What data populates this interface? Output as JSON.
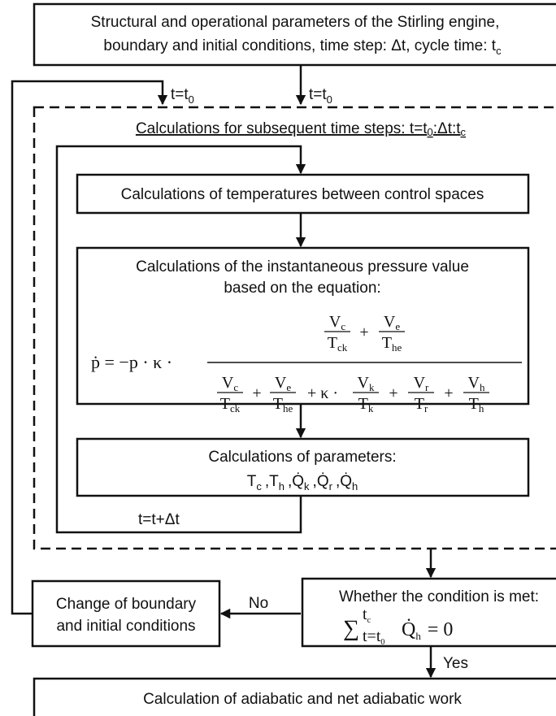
{
  "top_box": {
    "line1": "Structural and operational parameters of the Stirling engine,",
    "line2": "boundary and initial conditions, time step: Δt, cycle time: t",
    "line2_sub": "c"
  },
  "start_labels": [
    {
      "text": "t=t",
      "sub": "0"
    },
    {
      "text": "t=t",
      "sub": "0"
    }
  ],
  "loop_box": {
    "title": "Calculations for subsequent time steps: t=t",
    "title_sub1": "0",
    "title_mid": ":Δt:t",
    "title_sub2": "c"
  },
  "temperature_box": {
    "text": "Calculations of temperatures between control spaces"
  },
  "pressure_box": {
    "line1": "Calculations of the instantaneous pressure value",
    "line2": "based on the equation:",
    "formula": {
      "lead": "ṗ = −p · κ ·",
      "numerator": [
        {
          "n": "V",
          "ns": "c",
          "d": "T",
          "ds": "ck"
        },
        "+",
        {
          "n": "V",
          "ns": "e",
          "d": "T",
          "ds": "he"
        }
      ],
      "denominator": [
        {
          "n": "V",
          "ns": "c",
          "d": "T",
          "ds": "ck"
        },
        "+",
        {
          "n": "V",
          "ns": "e",
          "d": "T",
          "ds": "he"
        },
        "+ κ ·",
        {
          "n": "V",
          "ns": "k",
          "d": "T",
          "ds": "k"
        },
        "+",
        {
          "n": "V",
          "ns": "r",
          "d": "T",
          "ds": "r"
        },
        "+",
        {
          "n": "V",
          "ns": "h",
          "d": "T",
          "ds": "h"
        }
      ]
    }
  },
  "parameters_box": {
    "title": "Calculations of parameters:",
    "separator": ",",
    "items": [
      {
        "symbol": "T",
        "sub": "c"
      },
      {
        "symbol": "T",
        "sub": "h"
      },
      {
        "symbol": "Q̇",
        "sub": "k"
      },
      {
        "symbol": "Q̇",
        "sub": "r"
      },
      {
        "symbol": "Q̇",
        "sub": "h"
      }
    ]
  },
  "step_label": "t=t+Δt",
  "decision_box": {
    "text": "Whether the condition is met:",
    "formula": {
      "sigma": "∑",
      "upper": "t",
      "upper_sub": "c",
      "lower": "t=t",
      "lower_sub": "0",
      "term": "Q̇",
      "term_sub": "h",
      "rhs": "= 0"
    }
  },
  "no_label": "No",
  "yes_label": "Yes",
  "change_box": {
    "line1": "Change of boundary",
    "line2": "and initial conditions"
  },
  "final_box": {
    "text": "Calculation of adiabatic and net adiabatic work"
  }
}
